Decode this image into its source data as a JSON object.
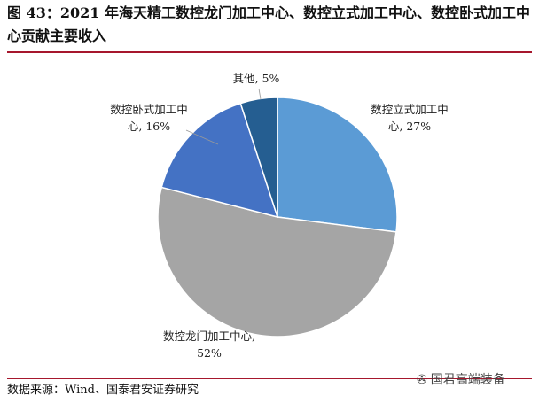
{
  "header": {
    "title": "图 43：2021 年海天精工数控龙门加工中心、数控立式加工中心、数控卧式加工中心贡献主要收入"
  },
  "footer": {
    "source": "数据来源：Wind、国泰君安证券研究",
    "watermark": "国君高端装备",
    "watermark_icon": "wechat-icon"
  },
  "chart_data": {
    "type": "pie",
    "title": "",
    "slices": [
      {
        "name": "数控立式加工中心",
        "value": 27,
        "color": "#5b9bd5",
        "label_lines": [
          "数控立式加工中",
          "心, 27%"
        ]
      },
      {
        "name": "数控龙门加工中心",
        "value": 52,
        "color": "#a5a5a5",
        "label_lines": [
          "数控龙门加工中心,",
          "52%"
        ]
      },
      {
        "name": "数控卧式加工中心",
        "value": 16,
        "color": "#4472c4",
        "label_lines": [
          "数控卧式加工中",
          "心, 16%"
        ]
      },
      {
        "name": "其他",
        "value": 5,
        "color": "#255e91",
        "label_lines": [
          "其他, 5%"
        ]
      }
    ]
  }
}
